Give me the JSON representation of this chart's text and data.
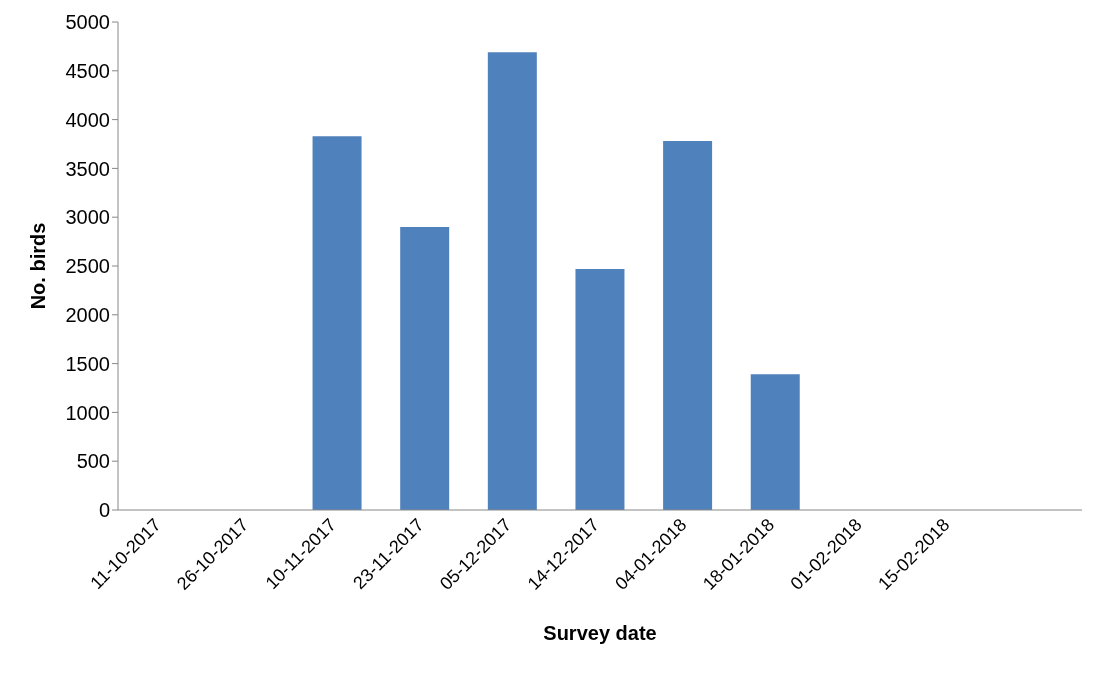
{
  "chart_data": {
    "type": "bar",
    "xlabel": "Survey date",
    "ylabel": "No. birds",
    "categories": [
      "11-10-2017",
      "26-10-2017",
      "10-11-2017",
      "23-11-2017",
      "05-12-2017",
      "14-12-2017",
      "04-01-2018",
      "18-01-2018",
      "01-02-2018",
      "15-02-2018",
      null
    ],
    "values": [
      0,
      0,
      3830,
      2900,
      4690,
      2470,
      3780,
      1390,
      0,
      0,
      0
    ],
    "color": "#4f81bd",
    "ylim": [
      0,
      5000
    ],
    "yticks": [
      0,
      500,
      1000,
      1500,
      2000,
      2500,
      3000,
      3500,
      4000,
      4500,
      5000
    ],
    "grid": false
  }
}
